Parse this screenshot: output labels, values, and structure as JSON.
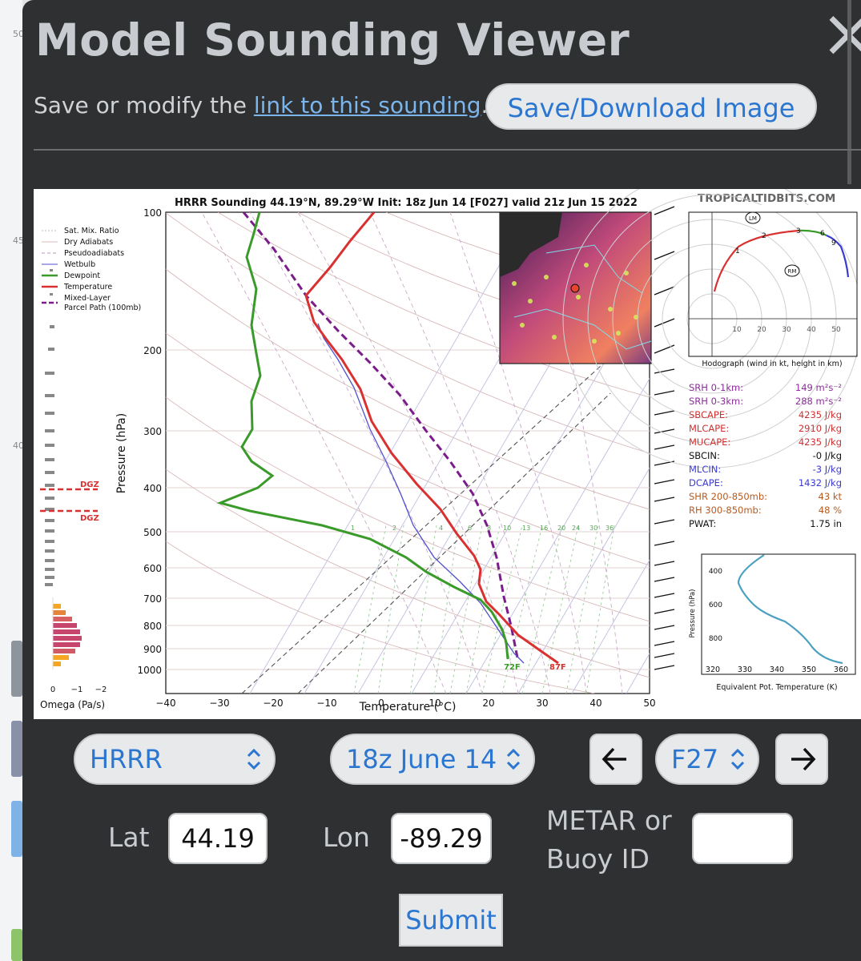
{
  "modal": {
    "title": "Model Sounding Viewer",
    "sub_prefix": "Save or modify the ",
    "sub_link": "link to this sounding",
    "sub_suffix": ".",
    "save_button": "Save/Download Image"
  },
  "background": {
    "labels": [
      "50",
      "45",
      "40"
    ]
  },
  "sounding": {
    "title": "HRRR Sounding 44.19°N, 89.29°W Init: 18z Jun 14 [F027] valid 21z Jun 15 2022",
    "brand": "TROPICALTIDBITS.COM",
    "legend": [
      "Sat. Mix. Ratio",
      "Dry Adiabats",
      "Pseudoadiabats",
      "Wetbulb",
      "Dewpoint",
      "Temperature",
      "Mixed-Layer",
      "Parcel Path (100mb)"
    ],
    "dgz_label": "DGZ",
    "omega_label": "Omega (Pa/s)",
    "omega_ticks": [
      "0",
      "−1",
      "−2"
    ],
    "x_label": "Temperature (°C)",
    "y_label": "Pressure (hPa)",
    "x_ticks": [
      "−40",
      "−30",
      "−20",
      "−10",
      "0",
      "10",
      "20",
      "30",
      "40",
      "50"
    ],
    "y_ticks": [
      "100",
      "200",
      "300",
      "400",
      "500",
      "600",
      "700",
      "800",
      "900",
      "1000"
    ],
    "mix_ratio_ticks": [
      "1",
      "2",
      "4",
      "6",
      "8",
      "10",
      "13",
      "16",
      "20",
      "24",
      "30",
      "36"
    ],
    "sfc_dewpoint": "72F",
    "sfc_temp": "87F",
    "hodograph": {
      "caption": "Hodograph (wind in kt, height in km)",
      "ticks": [
        "10",
        "20",
        "30",
        "40",
        "50"
      ],
      "height_marks": [
        "1",
        "2",
        "3",
        "6",
        "9"
      ],
      "lm": "LM",
      "rm": "RM"
    },
    "params": [
      {
        "label": "SRH 0-1km:",
        "value": "149 m²s⁻²",
        "color": "#8b2d9a"
      },
      {
        "label": "SRH 0-3km:",
        "value": "288 m²s⁻²",
        "color": "#8b2d9a"
      },
      {
        "label": "SBCAPE:",
        "value": "4235 J/kg",
        "color": "#d03030"
      },
      {
        "label": "MLCAPE:",
        "value": "2910 J/kg",
        "color": "#d03030"
      },
      {
        "label": "MUCAPE:",
        "value": "4235 J/kg",
        "color": "#d03030"
      },
      {
        "label": "SBCIN:",
        "value": "-0 J/kg",
        "color": "#111111"
      },
      {
        "label": "MLCIN:",
        "value": "-3 J/kg",
        "color": "#3a3ad0"
      },
      {
        "label": "DCAPE:",
        "value": "1432 J/kg",
        "color": "#3a3ad0"
      },
      {
        "label": "SHR 200-850mb:",
        "value": "43 kt",
        "color": "#b85a20"
      },
      {
        "label": "RH 300-850mb:",
        "value": "48 %",
        "color": "#b85a20"
      },
      {
        "label": "PWAT:",
        "value": "1.75 in",
        "color": "#111111"
      }
    ],
    "theta_e": {
      "y_label": "Pressure (hPa)",
      "x_label": "Equivalent Pot. Temperature (K)",
      "y_ticks": [
        "400",
        "600",
        "800"
      ],
      "x_ticks": [
        "320",
        "330",
        "340",
        "350",
        "360"
      ]
    }
  },
  "controls": {
    "model": "HRRR",
    "init": "18z June 14",
    "forecast_hour": "F27",
    "lat_label": "Lat",
    "lat_value": "44.19",
    "lon_label": "Lon",
    "lon_value": "-89.29",
    "station_label_1": "METAR or",
    "station_label_2": "Buoy ID",
    "station_value": "",
    "submit": "Submit"
  }
}
